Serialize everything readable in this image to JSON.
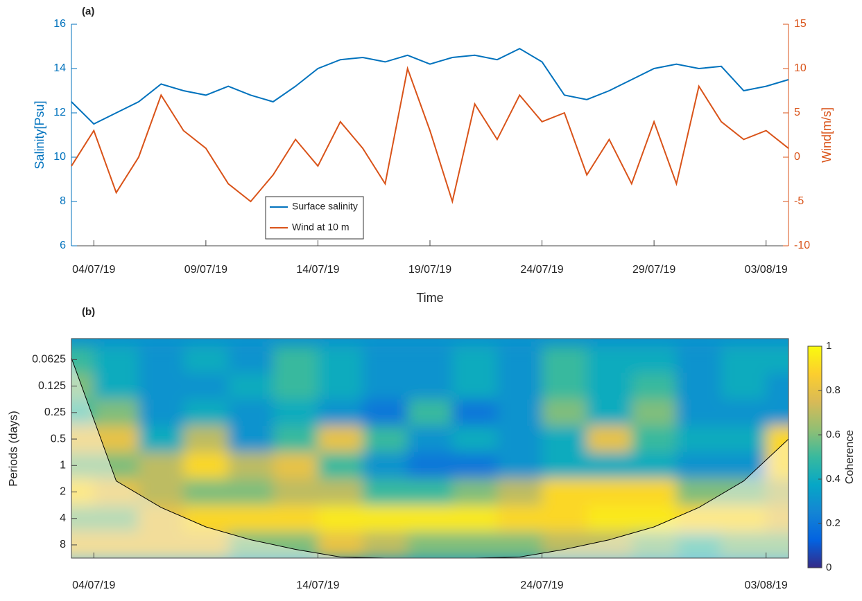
{
  "chart_data": [
    {
      "type": "line",
      "annotation": "(a)",
      "xlabel": "Time",
      "ylabel": "Salinity[Psu]",
      "y2label": "Wind[m/s]",
      "x": [
        "03/07/19",
        "04/07/19",
        "05/07/19",
        "06/07/19",
        "07/07/19",
        "08/07/19",
        "09/07/19",
        "10/07/19",
        "11/07/19",
        "12/07/19",
        "13/07/19",
        "14/07/19",
        "15/07/19",
        "16/07/19",
        "17/07/19",
        "18/07/19",
        "19/07/19",
        "20/07/19",
        "21/07/19",
        "22/07/19",
        "23/07/19",
        "24/07/19",
        "25/07/19",
        "26/07/19",
        "27/07/19",
        "28/07/19",
        "29/07/19",
        "30/07/19",
        "31/07/19",
        "01/08/19",
        "02/08/19",
        "03/08/19",
        "04/08/19"
      ],
      "xlim": [
        "03/07/19",
        "04/08/19"
      ],
      "xticks": [
        "04/07/19",
        "09/07/19",
        "14/07/19",
        "19/07/19",
        "24/07/19",
        "29/07/19",
        "03/08/19"
      ],
      "ylim": [
        6,
        16
      ],
      "yticks": [
        6,
        8,
        10,
        12,
        14,
        16
      ],
      "y2lim": [
        -10,
        15
      ],
      "y2ticks": [
        -10,
        -5,
        0,
        5,
        10,
        15
      ],
      "legend": "lower-left",
      "series": [
        {
          "name": "Surface salinity",
          "color": "#0072bd",
          "values": [
            12.5,
            11.5,
            12,
            12.5,
            13.3,
            13.0,
            12.8,
            13.2,
            12.8,
            12.5,
            13.2,
            14.0,
            14.4,
            14.5,
            14.3,
            14.6,
            14.2,
            14.5,
            14.6,
            14.4,
            14.9,
            14.3,
            12.8,
            12.6,
            13.0,
            13.5,
            14.0,
            14.2,
            14.0,
            14.1,
            13.0,
            13.2,
            13.5
          ]
        },
        {
          "name": "Wind at 10 m",
          "color": "#d95319",
          "axis": "y2",
          "values": [
            -1,
            3,
            -4,
            0,
            7,
            3,
            1,
            -3,
            -5,
            -2,
            2,
            -1,
            4,
            1,
            -3,
            10,
            3,
            -5,
            6,
            2,
            7,
            4,
            5,
            -2,
            2,
            -3,
            4,
            -3,
            8,
            4,
            2,
            3,
            1
          ]
        }
      ]
    },
    {
      "type": "heatmap",
      "annotation": "(b)",
      "ylabel": "Periods (days)",
      "colorbar_label": "Coherence",
      "x": [
        "03/07/19",
        "05/07/19",
        "07/07/19",
        "09/07/19",
        "11/07/19",
        "13/07/19",
        "15/07/19",
        "17/07/19",
        "19/07/19",
        "21/07/19",
        "23/07/19",
        "25/07/19",
        "27/07/19",
        "29/07/19",
        "31/07/19",
        "02/08/19",
        "04/08/19"
      ],
      "xlim": [
        "03/07/19",
        "04/08/19"
      ],
      "xticks": [
        "04/07/19",
        "14/07/19",
        "24/07/19",
        "03/08/19"
      ],
      "y": [
        0.0625,
        0.125,
        0.25,
        0.5,
        1,
        2,
        4,
        8
      ],
      "ylim": [
        0.036,
        11.3
      ],
      "yscale": "log",
      "yreverse": true,
      "yticks": [
        0.0625,
        0.125,
        0.25,
        0.5,
        1,
        2,
        4,
        8
      ],
      "z": [
        [
          0.5,
          0.4,
          0.3,
          0.4,
          0.3,
          0.5,
          0.4,
          0.3,
          0.3,
          0.4,
          0.3,
          0.5,
          0.4,
          0.4,
          0.3,
          0.4,
          0.4
        ],
        [
          0.6,
          0.4,
          0.3,
          0.3,
          0.4,
          0.5,
          0.4,
          0.3,
          0.3,
          0.4,
          0.3,
          0.5,
          0.4,
          0.5,
          0.3,
          0.4,
          0.3
        ],
        [
          0.5,
          0.6,
          0.3,
          0.4,
          0.3,
          0.4,
          0.3,
          0.2,
          0.5,
          0.2,
          0.3,
          0.6,
          0.4,
          0.6,
          0.3,
          0.3,
          0.3
        ],
        [
          0.8,
          0.8,
          0.4,
          0.7,
          0.3,
          0.5,
          0.8,
          0.5,
          0.3,
          0.4,
          0.3,
          0.4,
          0.8,
          0.5,
          0.4,
          0.4,
          0.9
        ],
        [
          0.6,
          0.6,
          0.7,
          0.9,
          0.7,
          0.8,
          0.5,
          0.3,
          0.2,
          0.2,
          0.3,
          0.4,
          0.4,
          0.4,
          0.3,
          0.3,
          0.9
        ],
        [
          0.9,
          0.8,
          0.7,
          0.6,
          0.6,
          0.7,
          0.7,
          0.5,
          0.5,
          0.6,
          0.7,
          0.9,
          0.9,
          0.9,
          0.6,
          0.6,
          0.7
        ],
        [
          0.6,
          0.6,
          0.8,
          0.9,
          0.9,
          0.9,
          0.95,
          0.95,
          0.95,
          0.95,
          0.9,
          0.9,
          0.95,
          0.95,
          0.9,
          0.9,
          0.8
        ],
        [
          0.8,
          0.8,
          0.8,
          0.8,
          0.6,
          0.6,
          0.8,
          0.7,
          0.6,
          0.6,
          0.6,
          0.7,
          0.7,
          0.6,
          0.5,
          0.6,
          0.6
        ]
      ],
      "coi": [
        0.06,
        1.5,
        3,
        5,
        7,
        9,
        11,
        11.3,
        11.3,
        11.3,
        11,
        9,
        7,
        5,
        3,
        1.5,
        0.5
      ],
      "zlim": [
        0,
        1
      ],
      "zticks": [
        0,
        0.2,
        0.4,
        0.6,
        0.8,
        1
      ]
    }
  ]
}
